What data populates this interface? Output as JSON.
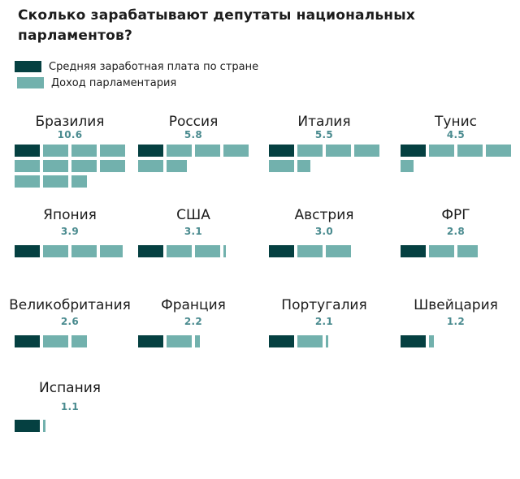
{
  "title_lines": [
    "Сколько зарабатывают депутаты национальных",
    "парламентов?"
  ],
  "legend_items": [
    {
      "label": "Средняя заработная плата по стране",
      "swatch": "dark"
    },
    {
      "label": "Доход парламентария",
      "swatch": "light"
    }
  ],
  "colors": {
    "background": "#ffffff",
    "text": "#1c1c1c",
    "average_salary_square": "#054041",
    "mp_income_square": "#72b1ad",
    "value_label": "#4a8b8f"
  },
  "chart_data": {
    "type": "bar",
    "subtype": "unit_pictogram",
    "title": "Сколько зарабатывают депутаты национальных парламентов?",
    "legend": [
      "Средняя заработная плата по стране",
      "Доход парламентария"
    ],
    "legend_position": "top-left",
    "units_per_row": 4,
    "unit_value": 1,
    "categories": [
      "Бразилия",
      "Россия",
      "Италия",
      "Тунис",
      "Япония",
      "США",
      "Австрия",
      "ФРГ",
      "Великобритания",
      "Франция",
      "Португалия",
      "Швейцария",
      "Испания"
    ],
    "values": [
      10.6,
      5.8,
      5.5,
      4.5,
      3.9,
      3.1,
      3.0,
      2.8,
      2.6,
      2.2,
      2.1,
      1.2,
      1.1
    ],
    "display_values": [
      "10.6",
      "5.8",
      "5.5",
      "4.5",
      "3.9",
      "3.1",
      "3.0",
      "2.8",
      "2.6",
      "2.2",
      "2.1",
      "1.2",
      "1.1"
    ]
  }
}
